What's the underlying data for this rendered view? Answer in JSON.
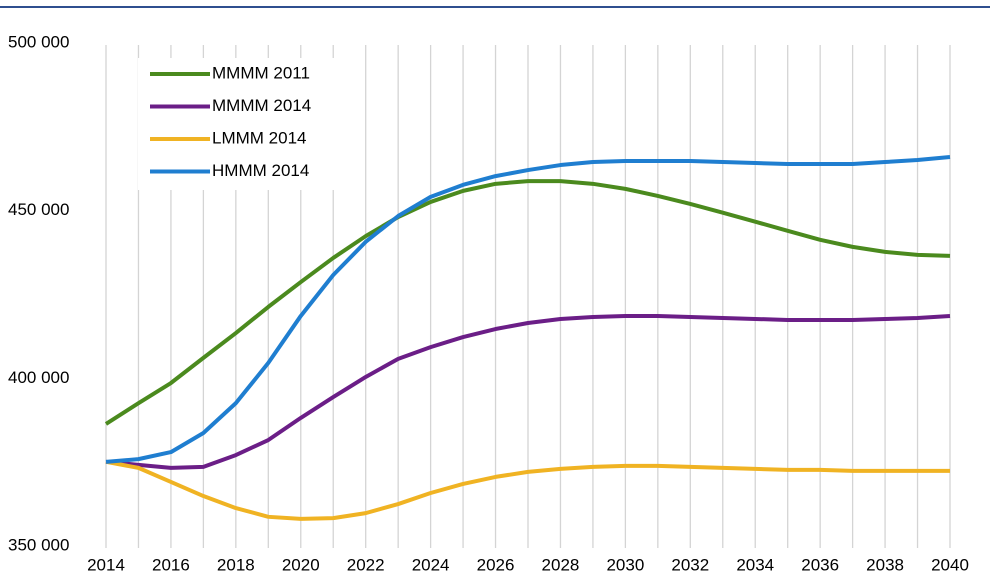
{
  "chart_data": {
    "type": "line",
    "x": [
      2014,
      2015,
      2016,
      2017,
      2018,
      2019,
      2020,
      2021,
      2022,
      2023,
      2024,
      2025,
      2026,
      2027,
      2028,
      2029,
      2030,
      2031,
      2032,
      2033,
      2034,
      2035,
      2036,
      2037,
      2038,
      2039,
      2040
    ],
    "xlim": [
      2014,
      2040
    ],
    "xticks": [
      2014,
      2016,
      2018,
      2020,
      2022,
      2024,
      2026,
      2028,
      2030,
      2032,
      2034,
      2036,
      2038,
      2040
    ],
    "ylim": [
      350000,
      500000
    ],
    "yticks": [
      {
        "value": 350000,
        "label": "350 000"
      },
      {
        "value": 400000,
        "label": "400 000"
      },
      {
        "value": 450000,
        "label": "450 000"
      },
      {
        "value": 500000,
        "label": "500 000"
      }
    ],
    "grid": "x",
    "legend": "upper left",
    "series": [
      {
        "name": "MMMM 2011",
        "color": "#4b8a1e",
        "values": [
          387000,
          393200,
          399200,
          406700,
          414100,
          421900,
          429300,
          436500,
          443000,
          448700,
          453200,
          456500,
          458600,
          459400,
          459400,
          458600,
          457100,
          455000,
          452600,
          450000,
          447300,
          444600,
          441900,
          439800,
          438300,
          437400,
          437100
        ]
      },
      {
        "name": "MMMM 2014",
        "color": "#6b1e87",
        "values": [
          375700,
          374800,
          373900,
          374200,
          377700,
          382200,
          388800,
          395000,
          401000,
          406400,
          409900,
          412900,
          415300,
          417100,
          418300,
          418900,
          419200,
          419200,
          418900,
          418600,
          418300,
          418000,
          418000,
          418000,
          418300,
          418600,
          419200
        ]
      },
      {
        "name": "LMMM 2014",
        "color": "#f0b323",
        "values": [
          375700,
          373900,
          369700,
          365500,
          361900,
          359300,
          358700,
          358900,
          360400,
          363100,
          366400,
          369100,
          371200,
          372700,
          373600,
          374200,
          374500,
          374500,
          374200,
          373900,
          373600,
          373300,
          373300,
          373000,
          373000,
          373000,
          373000
        ]
      },
      {
        "name": "HMMM 2014",
        "color": "#1f7ed0",
        "values": [
          375700,
          376500,
          378600,
          384300,
          393200,
          405200,
          419200,
          431400,
          441300,
          449000,
          454700,
          458300,
          460900,
          462700,
          464200,
          465100,
          465400,
          465400,
          465400,
          465100,
          464800,
          464500,
          464500,
          464500,
          465100,
          465700,
          466600
        ]
      }
    ]
  }
}
